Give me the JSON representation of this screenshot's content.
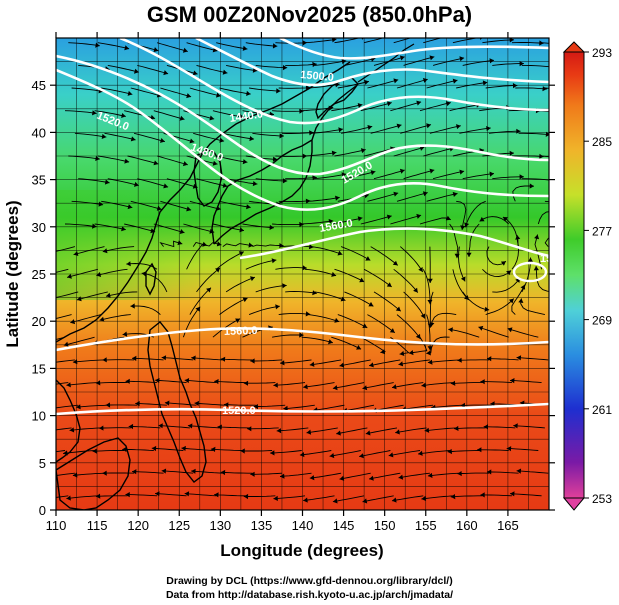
{
  "title": "GSM 00Z20Nov2025 (850.0hPa)",
  "x_axis": {
    "label": "Longitude (degrees)",
    "ticks": [
      "110",
      "115",
      "120",
      "125",
      "130",
      "135",
      "140",
      "145",
      "150",
      "155",
      "160",
      "165"
    ],
    "range": [
      110,
      170
    ]
  },
  "y_axis": {
    "label": "Latitude  (degrees)",
    "ticks": [
      "0",
      "5",
      "10",
      "15",
      "20",
      "25",
      "30",
      "35",
      "40",
      "45"
    ],
    "range": [
      0,
      50
    ]
  },
  "colorbar": {
    "labels": [
      "293",
      "285",
      "277",
      "269",
      "261",
      "253"
    ],
    "range": [
      253,
      293
    ],
    "colors": [
      "#e0409a",
      "#7a1aa6",
      "#1e2fd0",
      "#2a8de0",
      "#4fd0d8",
      "#5ee06a",
      "#3fcc2a",
      "#c6e02a",
      "#f0b42a",
      "#f07a1a",
      "#e83a14",
      "#d41a14"
    ]
  },
  "contours": [
    {
      "label": "1520.0"
    },
    {
      "label": "1560.0"
    },
    {
      "label": "1500.0"
    },
    {
      "label": "1480.0"
    },
    {
      "label": "1520.0"
    },
    {
      "label": "1440.0"
    },
    {
      "label": "1520.0"
    },
    {
      "label": "1560.0"
    },
    {
      "label": "1520.0"
    }
  ],
  "credits": {
    "line1": "Drawing by DCL (https://www.gfd-dennou.org/library/dcl/)",
    "line2": "Data from http://database.rish.kyoto-u.ac.jp/arch/jmadata/"
  }
}
